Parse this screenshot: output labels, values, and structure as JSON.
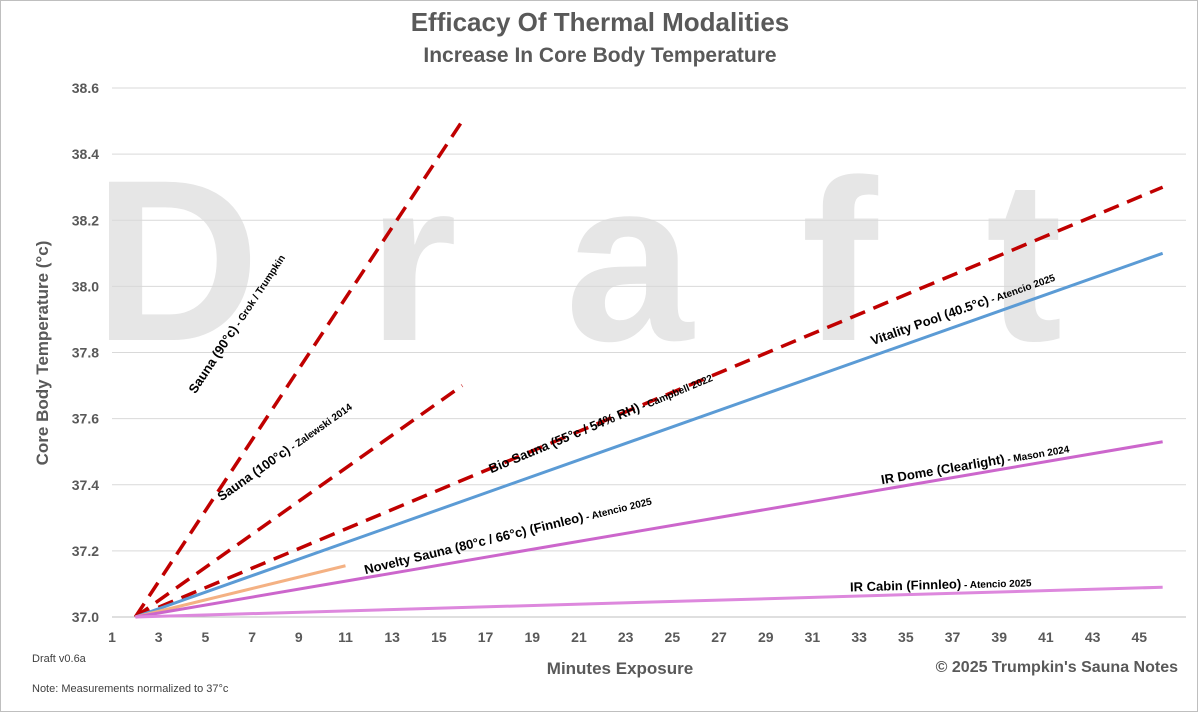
{
  "title": "Efficacy Of Thermal Modalities",
  "subtitle": "Increase In Core Body Temperature",
  "watermark": "Draft",
  "version_label": "Draft v0.6a",
  "note": "Note: Measurements normalized to 37°c",
  "copyright": "© 2025 Trumpkin's Sauna Notes",
  "chart_data": {
    "type": "line",
    "title": "Efficacy Of Thermal Modalities",
    "subtitle": "Increase In Core Body Temperature",
    "xlabel": "Minutes Exposure",
    "ylabel": "Core Body Temperature (°c)",
    "xlim": [
      1,
      47
    ],
    "ylim": [
      37.0,
      38.6
    ],
    "xticks": [
      1,
      3,
      5,
      7,
      9,
      11,
      13,
      15,
      17,
      19,
      21,
      23,
      25,
      27,
      29,
      31,
      33,
      35,
      37,
      39,
      41,
      43,
      45
    ],
    "yticks": [
      37.0,
      37.2,
      37.4,
      37.6,
      37.8,
      38.0,
      38.2,
      38.4,
      38.6
    ],
    "grid": true,
    "legend": "none (inline labels)",
    "series": [
      {
        "name": "Sauna (90°c)",
        "source": " - Grok / Trumpkin",
        "style": "dashed",
        "color": "#c00000",
        "x": [
          2,
          16
        ],
        "y": [
          37.0,
          38.5
        ],
        "label_x": 6.5,
        "label_y": 37.88
      },
      {
        "name": "Sauna (100°c)",
        "source": " - Zalewski 2014",
        "style": "dashed",
        "color": "#c00000",
        "x": [
          2,
          16
        ],
        "y": [
          37.0,
          37.7
        ],
        "label_x": 8.5,
        "label_y": 37.49
      },
      {
        "name": "Bio Sauna (55°c / 54% RH)",
        "source": " - Campbell 2022",
        "style": "dashed",
        "color": "#c00000",
        "x": [
          2,
          46
        ],
        "y": [
          37.0,
          38.3
        ],
        "label_x": 22,
        "label_y": 37.575
      },
      {
        "name": "Vitality Pool (40.5°c)",
        "source": " - Atencio 2025",
        "style": "solid",
        "color": "#5b9bd5",
        "x": [
          2,
          46
        ],
        "y": [
          37.0,
          38.1
        ],
        "label_x": 37.5,
        "label_y": 37.92
      },
      {
        "name": "Novelty Sauna (80°c / 66°c) (Finnleo)",
        "source": " - Atencio 2025",
        "style": "solid",
        "color": "#f4b183",
        "x": [
          2,
          11
        ],
        "y": [
          37.0,
          37.155
        ],
        "label_x": 18,
        "label_y": 37.235
      },
      {
        "name": "IR Dome (Clearlight)",
        "source": " - Mason 2024",
        "style": "solid",
        "color": "#cc66cc",
        "x": [
          2,
          46
        ],
        "y": [
          37.0,
          37.53
        ],
        "label_x": 38,
        "label_y": 37.45
      },
      {
        "name": "IR Cabin (Finnleo)",
        "source": " - Atencio 2025",
        "style": "solid",
        "color": "#dd88dd",
        "x": [
          2,
          46
        ],
        "y": [
          37.0,
          37.09
        ],
        "label_x": 36.5,
        "label_y": 37.085
      }
    ]
  }
}
